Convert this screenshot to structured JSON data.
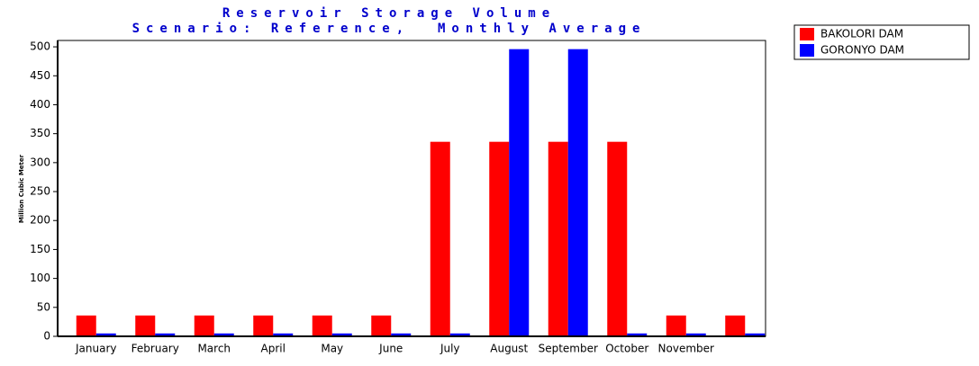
{
  "chart_data": {
    "type": "bar",
    "title": "Reservoir Storage Volume",
    "subtitle": "Scenario: Reference,  Monthly Average",
    "y_label": "Million Cubic Meter",
    "categories": [
      "January",
      "February",
      "March",
      "April",
      "May",
      "June",
      "July",
      "August",
      "September",
      "October",
      "November",
      null
    ],
    "series": [
      {
        "name": "BAKOLORI DAM",
        "color": "#ff0000",
        "values": [
          36,
          36,
          36,
          36,
          36,
          36,
          336,
          336,
          336,
          336,
          36,
          36
        ]
      },
      {
        "name": "GORONYO DAM",
        "color": "#0000ff",
        "values": [
          5,
          5,
          5,
          5,
          5,
          5,
          5,
          496,
          496,
          5,
          5,
          5
        ]
      }
    ],
    "ylim": [
      0,
      511
    ],
    "yticks": [
      0,
      50,
      100,
      150,
      200,
      250,
      300,
      350,
      400,
      450,
      500
    ],
    "legend": "top-right"
  }
}
